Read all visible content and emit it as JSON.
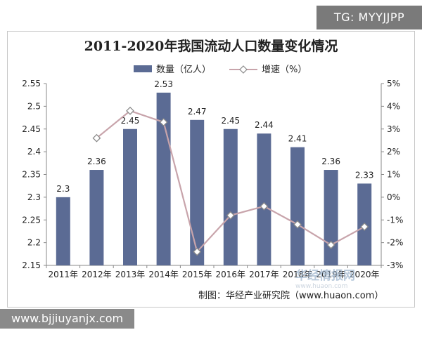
{
  "watermark_tag": "TG: MYYJJPP",
  "site_url": "www.bjjiuyanjx.com",
  "source_credit": "制图：华经产业研究院（www.huaon.com）",
  "logo_watermark": {
    "text": "华经情报网",
    "sub": "www.huaon.com"
  },
  "colors": {
    "bar": "#5b6b94",
    "line": "#c8a4ab",
    "marker_fill": "#ffffff",
    "marker_stroke": "#8a8a8a"
  },
  "chart_data": {
    "type": "bar",
    "title": "2011-2020年我国流动人口数量变化情况",
    "categories": [
      "2011年",
      "2012年",
      "2013年",
      "2014年",
      "2015年",
      "2016年",
      "2017年",
      "2018年",
      "2019年",
      "2020年"
    ],
    "series": [
      {
        "name": "数量（亿人）",
        "type": "bar",
        "axis": "left",
        "values": [
          2.3,
          2.36,
          2.45,
          2.53,
          2.47,
          2.45,
          2.44,
          2.41,
          2.36,
          2.33
        ],
        "labels": [
          "2.3",
          "2.36",
          "2.45",
          "2.53",
          "2.47",
          "2.45",
          "2.44",
          "2.41",
          "2.36",
          "2.33"
        ]
      },
      {
        "name": "增速（%）",
        "type": "line",
        "axis": "right",
        "values": [
          null,
          2.6,
          3.8,
          3.3,
          -2.4,
          -0.8,
          -0.4,
          -1.2,
          -2.1,
          -1.3
        ]
      }
    ],
    "y_left": {
      "min": 2.15,
      "max": 2.55,
      "ticks": [
        "2.15",
        "2.2",
        "2.25",
        "2.3",
        "2.35",
        "2.4",
        "2.45",
        "2.5",
        "2.55"
      ]
    },
    "y_right": {
      "min": -3,
      "max": 5,
      "ticks": [
        "-3%",
        "-2%",
        "-1%",
        "0%",
        "1%",
        "2%",
        "3%",
        "4%",
        "5%"
      ]
    },
    "grid": false,
    "legend_position": "top-center"
  }
}
